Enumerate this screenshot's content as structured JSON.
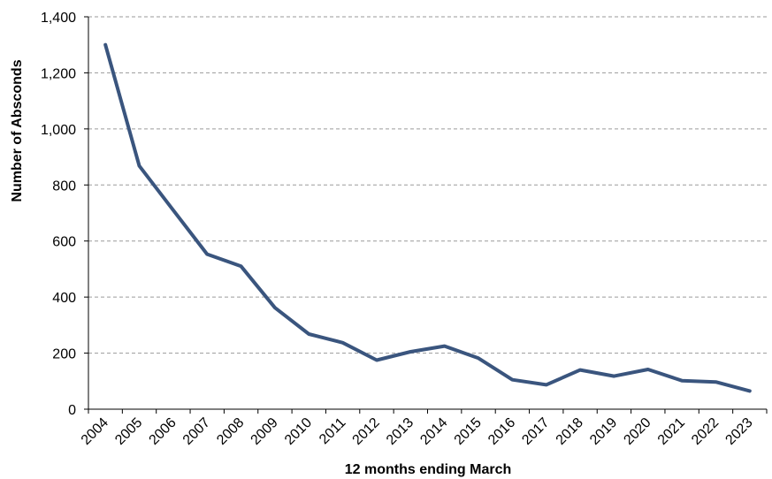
{
  "colors": {
    "series": "#3a557e",
    "grid": "#9a9a9a",
    "axis": "#000000"
  },
  "chart_data": {
    "type": "line",
    "title": "",
    "xlabel": "12 months ending March",
    "ylabel": "Number of Absconds",
    "ylim": [
      0,
      1400
    ],
    "yticks": [
      0,
      200,
      400,
      600,
      800,
      1000,
      1200,
      1400
    ],
    "ytick_labels": [
      "0",
      "200",
      "400",
      "600",
      "800",
      "1,000",
      "1,200",
      "1,400"
    ],
    "grid": true,
    "legend": "none",
    "categories": [
      "2004",
      "2005",
      "2006",
      "2007",
      "2008",
      "2009",
      "2010",
      "2011",
      "2012",
      "2013",
      "2014",
      "2015",
      "2016",
      "2017",
      "2018",
      "2019",
      "2020",
      "2021",
      "2022",
      "2023"
    ],
    "series": [
      {
        "values": [
          1300,
          868,
          710,
          553,
          510,
          362,
          268,
          237,
          175,
          205,
          225,
          182,
          105,
          87,
          140,
          118,
          142,
          102,
          97,
          65
        ]
      }
    ]
  }
}
